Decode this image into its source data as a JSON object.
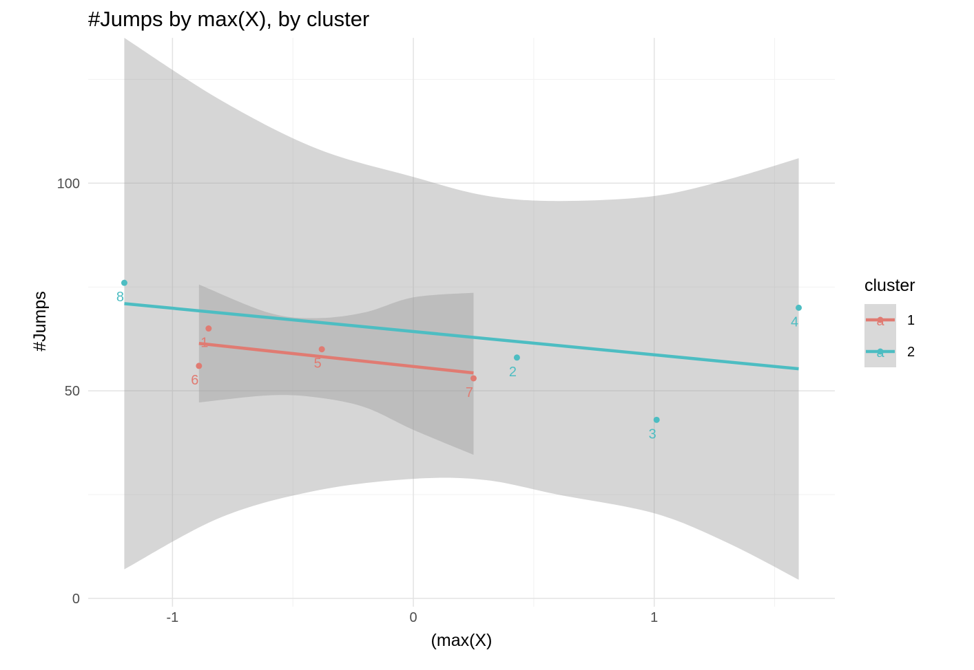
{
  "chart_data": {
    "type": "scatter",
    "title": "#Jumps by max(X), by cluster",
    "xlabel": "(max(X)",
    "ylabel": "#Jumps",
    "xlim": [
      -1.35,
      1.75
    ],
    "ylim": [
      -2,
      135
    ],
    "x_ticks": [
      -1,
      0,
      1
    ],
    "x_tick_labels": [
      "-1",
      "0",
      "1"
    ],
    "y_ticks": [
      0,
      50,
      100
    ],
    "y_tick_labels": [
      "0",
      "50",
      "100"
    ],
    "grid": true,
    "legend": {
      "title": "cluster",
      "position": "right",
      "glyph_text": "a"
    },
    "series": [
      {
        "name": "1",
        "color": "#E07B72",
        "points": [
          {
            "label": "1",
            "x": -0.85,
            "y": 65
          },
          {
            "label": "6",
            "x": -0.89,
            "y": 56
          },
          {
            "label": "5",
            "x": -0.38,
            "y": 60
          },
          {
            "label": "7",
            "x": 0.25,
            "y": 53
          }
        ],
        "fit": {
          "x": [
            -0.89,
            0.25
          ],
          "y": [
            61.4,
            54.3
          ]
        },
        "ribbon": {
          "x": [
            -0.89,
            -0.6,
            -0.4,
            -0.2,
            0.0,
            0.25
          ],
          "upper": [
            75.6,
            68.8,
            67.5,
            68.9,
            72.5,
            73.6
          ],
          "lower": [
            47.2,
            48.9,
            48.4,
            46.0,
            40.6,
            34.6
          ]
        }
      },
      {
        "name": "2",
        "color": "#4DBDC2",
        "points": [
          {
            "label": "8",
            "x": -1.2,
            "y": 76
          },
          {
            "label": "2",
            "x": 0.43,
            "y": 58
          },
          {
            "label": "3",
            "x": 1.01,
            "y": 43
          },
          {
            "label": "4",
            "x": 1.6,
            "y": 70
          }
        ],
        "fit": {
          "x": [
            -1.2,
            1.6
          ],
          "y": [
            71.0,
            55.3
          ]
        },
        "ribbon": {
          "x": [
            -1.2,
            -0.8,
            -0.4,
            0.0,
            0.3,
            0.6,
            1.0,
            1.3,
            1.6
          ],
          "upper": [
            135.0,
            120.0,
            108.3,
            101.5,
            97.0,
            95.7,
            96.9,
            100.8,
            106.0
          ],
          "lower": [
            7.0,
            19.5,
            26.0,
            28.8,
            28.5,
            25.0,
            20.5,
            13.5,
            4.5
          ]
        }
      }
    ]
  }
}
